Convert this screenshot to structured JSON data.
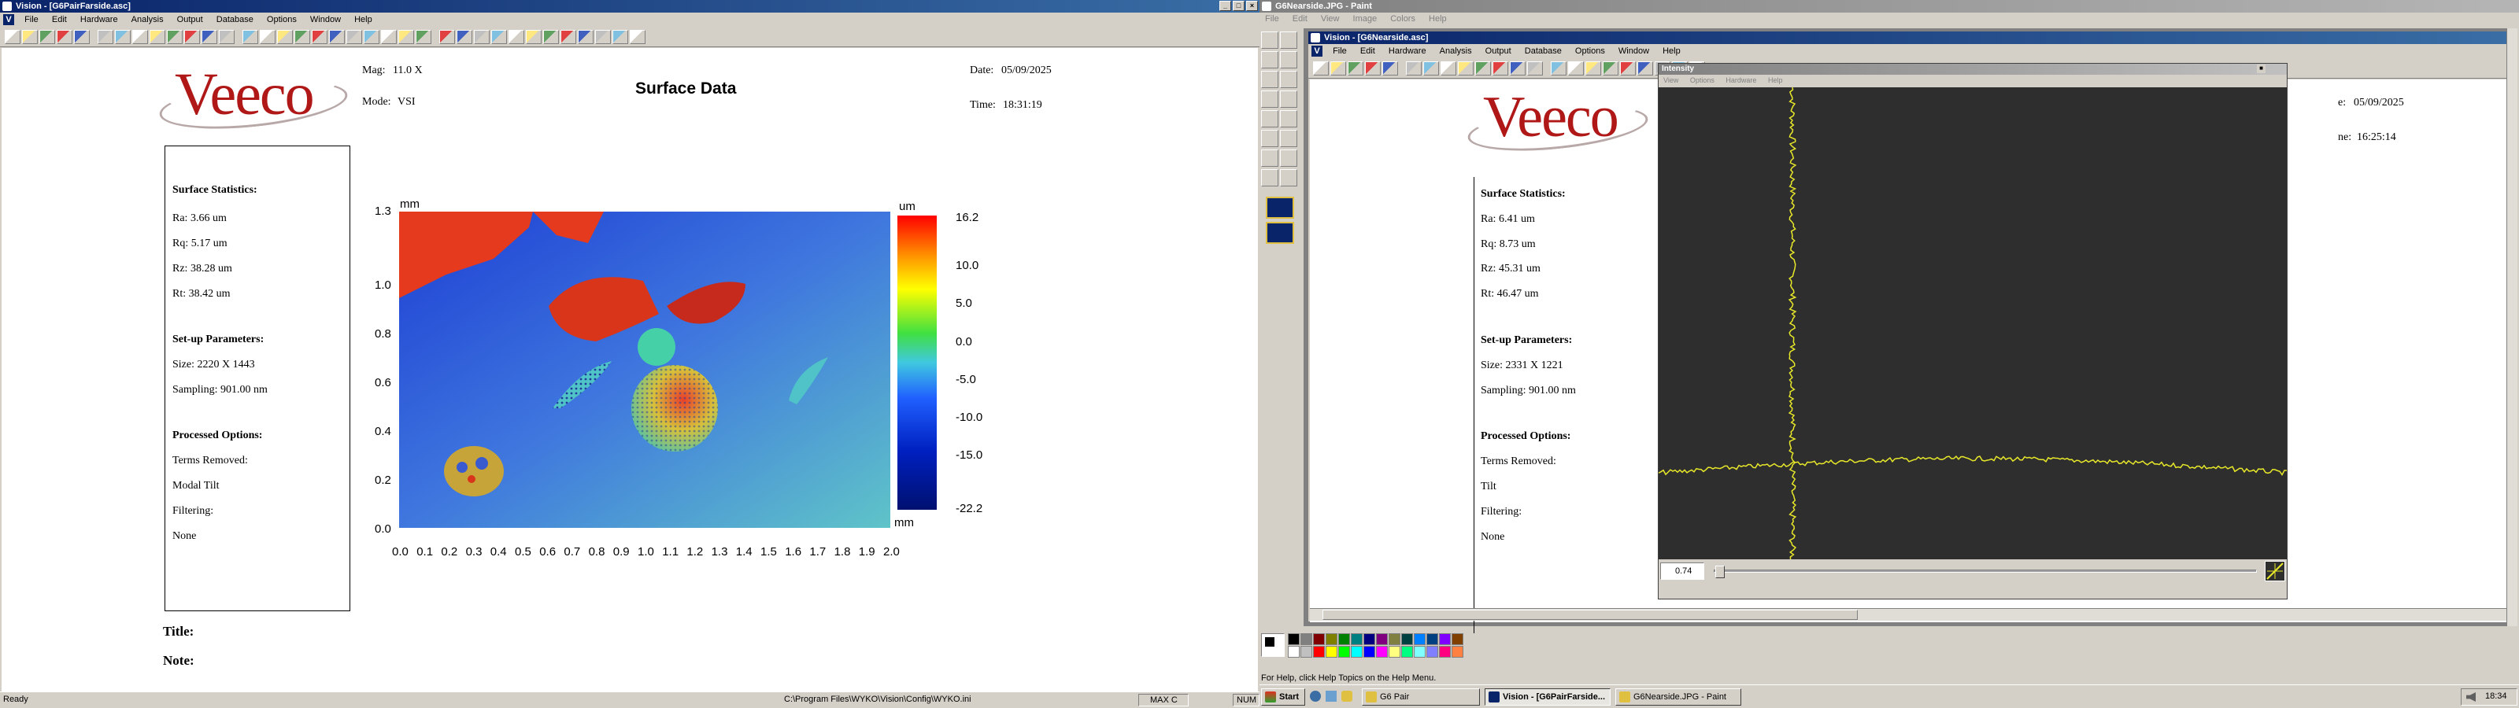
{
  "left_window": {
    "title": "Vision - [G6PairFarside.asc]",
    "menu": [
      "File",
      "Edit",
      "Hardware",
      "Analysis",
      "Output",
      "Database",
      "Options",
      "Window",
      "Help"
    ],
    "report": {
      "logo": "Veeco",
      "mag_label": "Mag:",
      "mag_value": "11.0 X",
      "mode_label": "Mode:",
      "mode_value": "VSI",
      "heading": "Surface Data",
      "date_label": "Date:",
      "date_value": "05/09/2025",
      "time_label": "Time:",
      "time_value": "18:31:19",
      "stats_heading": "Surface Statistics:",
      "stats": [
        "Ra:  3.66 um",
        "Rq:  5.17 um",
        "Rz:  38.28 um",
        "Rt:  38.42 um"
      ],
      "setup_heading": "Set-up Parameters:",
      "setup": [
        "Size:  2220 X 1443",
        "Sampling:  901.00 nm"
      ],
      "processed_heading": "Processed Options:",
      "processed": [
        "Terms Removed:",
        "Modal Tilt",
        "Filtering:",
        "None"
      ],
      "title_label": "Title:",
      "note_label": "Note:"
    },
    "plot": {
      "y_unit": "mm",
      "x_unit": "mm",
      "scale_unit": "um",
      "y_ticks": [
        "1.3",
        "1.0",
        "0.8",
        "0.6",
        "0.4",
        "0.2",
        "0.0"
      ],
      "x_ticks": [
        "0.0",
        "0.1",
        "0.2",
        "0.3",
        "0.4",
        "0.5",
        "0.6",
        "0.7",
        "0.8",
        "0.9",
        "1.0",
        "1.1",
        "1.2",
        "1.3",
        "1.4",
        "1.5",
        "1.6",
        "1.7",
        "1.8",
        "1.9",
        "2.0"
      ],
      "scale_ticks": [
        "16.2",
        "10.0",
        "5.0",
        "0.0",
        "-5.0",
        "-10.0",
        "-15.0",
        "-22.2"
      ]
    },
    "status": {
      "ready": "Ready",
      "path": "C:\\Program Files\\WYKO\\Vision\\Config\\WYKO.ini",
      "max": "MAX C",
      "num": "NUM"
    }
  },
  "right_window": {
    "title": "G6Nearside.JPG - Paint",
    "menu": [
      "File",
      "Edit",
      "View",
      "Image",
      "Colors",
      "Help"
    ],
    "inner_title": "Vision - [G6Nearside.asc]",
    "inner_menu": [
      "File",
      "Edit",
      "Hardware",
      "Analysis",
      "Output",
      "Database",
      "Options",
      "Window",
      "Help"
    ],
    "report": {
      "logo": "Veeco",
      "date_value": "05/09/2025",
      "time_value": "16:25:14",
      "date_frag": "e:",
      "time_frag": "ne:",
      "stats_heading": "Surface Statistics:",
      "stats": [
        "Ra:  6.41 um",
        "Rq:  8.73 um",
        "Rz:  45.31 um",
        "Rt:  46.47 um"
      ],
      "setup_heading": "Set-up Parameters:",
      "setup": [
        "Size:  2331 X 1221",
        "Sampling:  901.00 nm"
      ],
      "processed_heading": "Processed Options:",
      "processed": [
        "Terms Removed:",
        "Tilt",
        "Filtering:",
        "None"
      ]
    },
    "intensity": {
      "title": "Intensity",
      "menu": [
        "View",
        "Options",
        "Hardware",
        "Help"
      ],
      "slider_value": "0.74"
    },
    "status_help": "For Help, click Help Topics on the Help Menu."
  },
  "taskbar": {
    "start": "Start",
    "buttons": [
      "G6 Pair",
      "Vision - [G6PairFarside...",
      "G6Nearside.JPG - Paint"
    ],
    "clock": "18:34"
  },
  "colors": {
    "title_active": "#0a246a",
    "surface_bg": "#3a66d8",
    "peak_red": "#e0301a"
  }
}
